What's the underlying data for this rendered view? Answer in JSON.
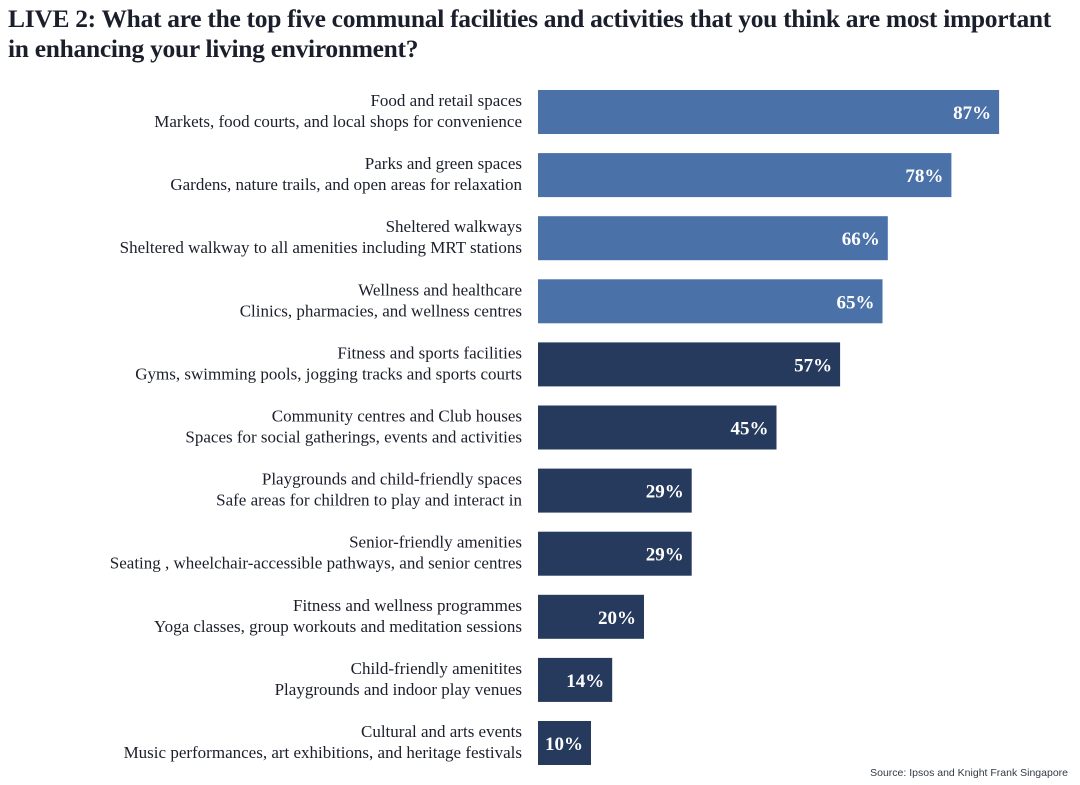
{
  "title": "LIVE 2: What are the top five communal facilities and activities that you think are most important in enhancing your living environment?",
  "source": "Source: Ipsos and Knight Frank Singapore",
  "colors": {
    "highlight": "#4a71a8",
    "standard": "#253a5c",
    "value_text": "#ffffff"
  },
  "chart_data": {
    "type": "bar",
    "orientation": "horizontal",
    "value_unit": "%",
    "xlim": [
      0,
      100
    ],
    "grid": false,
    "categories": [
      {
        "name": "Food and retail spaces",
        "desc": "Markets, food courts, and local shops for convenience",
        "value": 87,
        "highlight": true
      },
      {
        "name": "Parks and green spaces",
        "desc": "Gardens, nature trails, and open areas for relaxation",
        "value": 78,
        "highlight": true
      },
      {
        "name": "Sheltered walkways",
        "desc": "Sheltered walkway to all amenities including MRT stations",
        "value": 66,
        "highlight": true
      },
      {
        "name": "Wellness and healthcare",
        "desc": "Clinics, pharmacies, and wellness centres",
        "value": 65,
        "highlight": true
      },
      {
        "name": "Fitness and sports facilities",
        "desc": "Gyms, swimming pools, jogging tracks and sports courts",
        "value": 57,
        "highlight": false
      },
      {
        "name": "Community centres and Club houses",
        "desc": "Spaces for social gatherings, events and activities",
        "value": 45,
        "highlight": false
      },
      {
        "name": "Playgrounds and child-friendly spaces",
        "desc": "Safe areas for children to play and interact in",
        "value": 29,
        "highlight": false
      },
      {
        "name": "Senior-friendly amenities",
        "desc": "Seating , wheelchair-accessible pathways, and senior centres",
        "value": 29,
        "highlight": false
      },
      {
        "name": "Fitness and wellness programmes",
        "desc": "Yoga classes, group workouts and meditation sessions",
        "value": 20,
        "highlight": false
      },
      {
        "name": "Child-friendly amenitites",
        "desc": "Playgrounds and indoor play venues",
        "value": 14,
        "highlight": false
      },
      {
        "name": "Cultural and arts events",
        "desc": "Music performances, art exhibitions, and heritage festivals",
        "value": 10,
        "highlight": false
      }
    ]
  }
}
